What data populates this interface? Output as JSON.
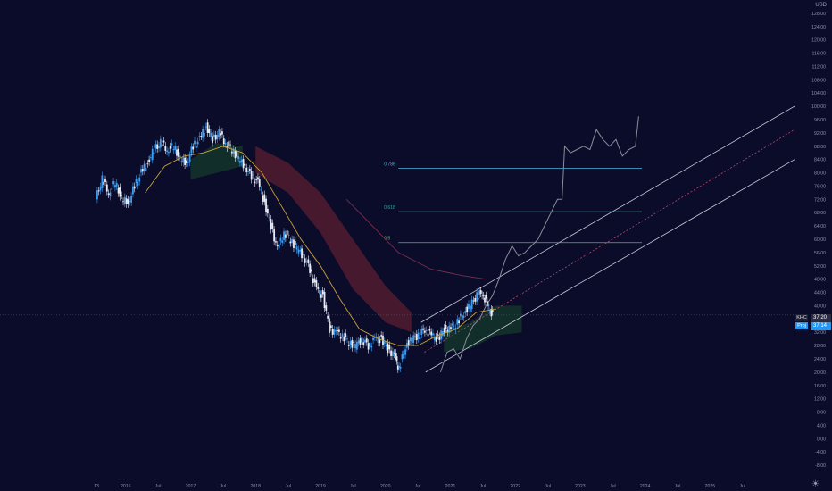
{
  "currency_label": "USD",
  "symbol_tags": [
    {
      "ticker": "KHC",
      "price": "37.20"
    },
    {
      "ticker": "Proj",
      "price": "37.14"
    }
  ],
  "colors": {
    "background": "#0b0c2a",
    "candle_up": "#3f9cf0",
    "candle_down": "#e7ecf5",
    "ma": "#c8a23a",
    "projection": "#8a8d99",
    "channel": "#c9cdd8",
    "fib": "#3fa7c9",
    "cloud_red": "#5b1e30",
    "cloud_green": "#163a2b"
  },
  "chart_data": {
    "type": "candlestick",
    "y_axis": {
      "range": [
        -12,
        132
      ],
      "ticks": [
        "128.00",
        "124.00",
        "120.00",
        "116.00",
        "112.00",
        "108.00",
        "104.00",
        "100.00",
        "96.00",
        "92.00",
        "88.00",
        "84.00",
        "80.00",
        "76.00",
        "72.00",
        "68.00",
        "64.00",
        "60.00",
        "56.00",
        "52.00",
        "48.00",
        "44.00",
        "40.00",
        "36.00",
        "32.00",
        "28.00",
        "24.00",
        "20.00",
        "16.00",
        "12.00",
        "8.00",
        "4.00",
        "0.00",
        "-4.00",
        "-8.00"
      ]
    },
    "x_axis": {
      "range": [
        2015.55,
        2026.3
      ],
      "ticks": [
        {
          "label": "13",
          "t": 2015.55
        },
        {
          "label": "2016",
          "t": 2016.0
        },
        {
          "label": "Jul",
          "t": 2016.5
        },
        {
          "label": "2017",
          "t": 2017.0
        },
        {
          "label": "Jul",
          "t": 2017.5
        },
        {
          "label": "2018",
          "t": 2018.0
        },
        {
          "label": "Jul",
          "t": 2018.5
        },
        {
          "label": "2019",
          "t": 2019.0
        },
        {
          "label": "Jul",
          "t": 2019.5
        },
        {
          "label": "2020",
          "t": 2020.0
        },
        {
          "label": "Jul",
          "t": 2020.5
        },
        {
          "label": "2021",
          "t": 2021.0
        },
        {
          "label": "Jul",
          "t": 2021.5
        },
        {
          "label": "2022",
          "t": 2022.0
        },
        {
          "label": "Jul",
          "t": 2022.5
        },
        {
          "label": "2023",
          "t": 2023.0
        },
        {
          "label": "Jul",
          "t": 2023.5
        },
        {
          "label": "2024",
          "t": 2024.0
        },
        {
          "label": "Jul",
          "t": 2024.5
        },
        {
          "label": "2025",
          "t": 2025.0
        },
        {
          "label": "Jul",
          "t": 2025.5
        }
      ]
    },
    "price_series": {
      "name": "KHC",
      "points": [
        [
          2015.55,
          72
        ],
        [
          2015.65,
          78
        ],
        [
          2015.75,
          74
        ],
        [
          2015.85,
          77
        ],
        [
          2015.95,
          72
        ],
        [
          2016.05,
          71
        ],
        [
          2016.15,
          76
        ],
        [
          2016.25,
          80
        ],
        [
          2016.35,
          83
        ],
        [
          2016.45,
          87
        ],
        [
          2016.55,
          89
        ],
        [
          2016.65,
          87
        ],
        [
          2016.75,
          88
        ],
        [
          2016.85,
          84
        ],
        [
          2016.95,
          83
        ],
        [
          2017.05,
          88
        ],
        [
          2017.15,
          90
        ],
        [
          2017.25,
          94
        ],
        [
          2017.35,
          90
        ],
        [
          2017.45,
          92
        ],
        [
          2017.55,
          89
        ],
        [
          2017.65,
          87
        ],
        [
          2017.75,
          84
        ],
        [
          2017.85,
          82
        ],
        [
          2017.95,
          79
        ],
        [
          2018.05,
          77
        ],
        [
          2018.15,
          71
        ],
        [
          2018.25,
          64
        ],
        [
          2018.35,
          57
        ],
        [
          2018.45,
          62
        ],
        [
          2018.55,
          60
        ],
        [
          2018.65,
          57
        ],
        [
          2018.75,
          55
        ],
        [
          2018.85,
          51
        ],
        [
          2018.95,
          45
        ],
        [
          2019.05,
          43
        ],
        [
          2019.15,
          33
        ],
        [
          2019.25,
          32
        ],
        [
          2019.35,
          31
        ],
        [
          2019.45,
          29
        ],
        [
          2019.55,
          28
        ],
        [
          2019.65,
          30
        ],
        [
          2019.75,
          28
        ],
        [
          2019.85,
          30
        ],
        [
          2019.95,
          30
        ],
        [
          2020.05,
          27
        ],
        [
          2020.15,
          25
        ],
        [
          2020.22,
          21
        ],
        [
          2020.32,
          28
        ],
        [
          2020.42,
          30
        ],
        [
          2020.52,
          31
        ],
        [
          2020.62,
          33
        ],
        [
          2020.72,
          31
        ],
        [
          2020.82,
          30
        ],
        [
          2020.92,
          33
        ],
        [
          2021.02,
          33
        ],
        [
          2021.12,
          35
        ],
        [
          2021.22,
          38
        ],
        [
          2021.32,
          40
        ],
        [
          2021.42,
          43
        ],
        [
          2021.5,
          44
        ],
        [
          2021.58,
          40
        ],
        [
          2021.66,
          37
        ]
      ]
    },
    "moving_average": {
      "points": [
        [
          2016.3,
          74
        ],
        [
          2016.6,
          82
        ],
        [
          2016.9,
          85
        ],
        [
          2017.2,
          86
        ],
        [
          2017.5,
          88
        ],
        [
          2017.8,
          86
        ],
        [
          2018.1,
          80
        ],
        [
          2018.4,
          70
        ],
        [
          2018.7,
          60
        ],
        [
          2019.0,
          52
        ],
        [
          2019.3,
          42
        ],
        [
          2019.6,
          33
        ],
        [
          2019.9,
          30
        ],
        [
          2020.2,
          28
        ],
        [
          2020.5,
          28
        ],
        [
          2020.8,
          31
        ],
        [
          2021.1,
          33
        ],
        [
          2021.4,
          38
        ],
        [
          2021.7,
          39
        ]
      ]
    },
    "ichimoku_cloud_bearish": {
      "upper": [
        [
          2018.0,
          88
        ],
        [
          2018.5,
          83
        ],
        [
          2019.0,
          74
        ],
        [
          2019.5,
          60
        ],
        [
          2020.0,
          46
        ],
        [
          2020.4,
          38
        ]
      ],
      "lower": [
        [
          2018.0,
          80
        ],
        [
          2018.5,
          74
        ],
        [
          2019.0,
          62
        ],
        [
          2019.5,
          45
        ],
        [
          2020.0,
          35
        ],
        [
          2020.4,
          32
        ]
      ]
    },
    "ichimoku_cloud_bullish": [
      {
        "upper": [
          [
            2017.0,
            84
          ],
          [
            2017.4,
            89
          ],
          [
            2017.8,
            88
          ]
        ],
        "lower": [
          [
            2017.0,
            78
          ],
          [
            2017.4,
            80
          ],
          [
            2017.8,
            82
          ]
        ]
      },
      {
        "upper": [
          [
            2020.9,
            32
          ],
          [
            2021.3,
            35
          ],
          [
            2021.7,
            40
          ],
          [
            2022.1,
            40
          ]
        ],
        "lower": [
          [
            2020.9,
            26
          ],
          [
            2021.3,
            27
          ],
          [
            2021.7,
            31
          ],
          [
            2022.1,
            32
          ]
        ]
      }
    ],
    "projection_series": {
      "name": "Proj",
      "points": [
        [
          2020.85,
          20
        ],
        [
          2020.95,
          26
        ],
        [
          2021.05,
          27
        ],
        [
          2021.15,
          24
        ],
        [
          2021.25,
          30
        ],
        [
          2021.35,
          34
        ],
        [
          2021.45,
          36
        ],
        [
          2021.55,
          40
        ],
        [
          2021.65,
          43
        ],
        [
          2021.75,
          48
        ],
        [
          2021.85,
          54
        ],
        [
          2021.95,
          58
        ],
        [
          2022.05,
          55
        ],
        [
          2022.15,
          56
        ],
        [
          2022.25,
          58
        ],
        [
          2022.35,
          60
        ],
        [
          2022.45,
          64
        ],
        [
          2022.55,
          68
        ],
        [
          2022.65,
          72
        ],
        [
          2022.72,
          72
        ],
        [
          2022.76,
          88
        ],
        [
          2022.85,
          86
        ],
        [
          2022.95,
          87
        ],
        [
          2023.05,
          88
        ],
        [
          2023.15,
          87
        ],
        [
          2023.25,
          93
        ],
        [
          2023.35,
          90
        ],
        [
          2023.45,
          88
        ],
        [
          2023.55,
          90
        ],
        [
          2023.65,
          85
        ],
        [
          2023.75,
          87
        ],
        [
          2023.85,
          88
        ],
        [
          2023.9,
          97
        ]
      ]
    },
    "ascending_channel": {
      "upper": [
        [
          2020.55,
          35
        ],
        [
          2026.3,
          100
        ]
      ],
      "middle": [
        [
          2020.6,
          26
        ],
        [
          2026.3,
          93
        ]
      ],
      "lower": [
        [
          2020.62,
          20
        ],
        [
          2026.3,
          84
        ]
      ]
    },
    "arc": {
      "points": [
        [
          2019.4,
          72
        ],
        [
          2019.8,
          64
        ],
        [
          2020.2,
          56
        ],
        [
          2020.7,
          51
        ],
        [
          2021.2,
          49
        ],
        [
          2021.55,
          48
        ]
      ]
    },
    "fib_levels": [
      {
        "label": "0.786",
        "value": 81.4,
        "x_start": 2020.2,
        "x_end": 2023.95
      },
      {
        "label": "0.618",
        "value": 68.3,
        "x_start": 2020.2,
        "x_end": 2023.95
      },
      {
        "label": "0.5",
        "value": 59.0,
        "x_start": 2020.2,
        "x_end": 2023.95
      }
    ],
    "current_price_line": 37.2
  }
}
